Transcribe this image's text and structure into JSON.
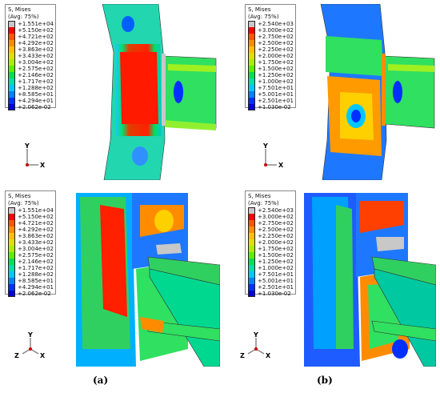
{
  "panels": {
    "a_top": {
      "legend": {
        "title": "S, Mises",
        "subtitle": "(Avg: 75%)",
        "values": [
          "+1.551e+04",
          "+5.150e+02",
          "+4.721e+02",
          "+4.292e+02",
          "+3.863e+02",
          "+3.433e+02",
          "+3.004e+02",
          "+2.575e+02",
          "+2.146e+02",
          "+1.717e+02",
          "+1.288e+02",
          "+8.585e+01",
          "+4.294e+01",
          "+2.062e-02"
        ]
      },
      "axes": {
        "y": "Y",
        "x": "X"
      }
    },
    "b_top": {
      "legend": {
        "title": "S, Mises",
        "subtitle": "(Avg: 75%)",
        "values": [
          "+2.540e+03",
          "+3.000e+02",
          "+2.750e+02",
          "+2.500e+02",
          "+2.250e+02",
          "+2.000e+02",
          "+1.750e+02",
          "+1.500e+02",
          "+1.250e+02",
          "+1.000e+02",
          "+7.501e+01",
          "+5.001e+01",
          "+2.501e+01",
          "+1.030e-02"
        ]
      },
      "axes": {
        "y": "Y",
        "x": "X"
      }
    },
    "a_bottom": {
      "legend": {
        "title": "S, Mises",
        "subtitle": "(Avg: 75%)",
        "values": [
          "+1.551e+04",
          "+5.150e+02",
          "+4.721e+02",
          "+4.292e+02",
          "+3.863e+02",
          "+3.433e+02",
          "+3.004e+02",
          "+2.575e+02",
          "+2.146e+02",
          "+1.717e+02",
          "+1.288e+02",
          "+8.585e+01",
          "+4.294e+01",
          "+2.062e-02"
        ]
      },
      "axes": {
        "y": "Y",
        "z": "Z",
        "x": "X"
      }
    },
    "b_bottom": {
      "legend": {
        "title": "S, Mises",
        "subtitle": "(Avg: 75%)",
        "values": [
          "+2.540e+03",
          "+3.000e+02",
          "+2.750e+02",
          "+2.500e+02",
          "+2.250e+02",
          "+2.000e+02",
          "+1.750e+02",
          "+1.500e+02",
          "+1.250e+02",
          "+1.000e+02",
          "+7.501e+01",
          "+5.001e+01",
          "+2.501e+01",
          "+1.030e-02"
        ]
      },
      "axes": {
        "y": "Y",
        "z": "Z",
        "x": "X"
      }
    }
  },
  "colorbar": [
    "#c8c8c8",
    "#ff0000",
    "#ff5500",
    "#ff8c00",
    "#ffc000",
    "#e0e000",
    "#a8f000",
    "#5af000",
    "#00e050",
    "#00e0a8",
    "#00c8ff",
    "#0082ff",
    "#0032ff",
    "#0000e0"
  ],
  "captions": {
    "a": "(a)",
    "b": "(b)"
  }
}
